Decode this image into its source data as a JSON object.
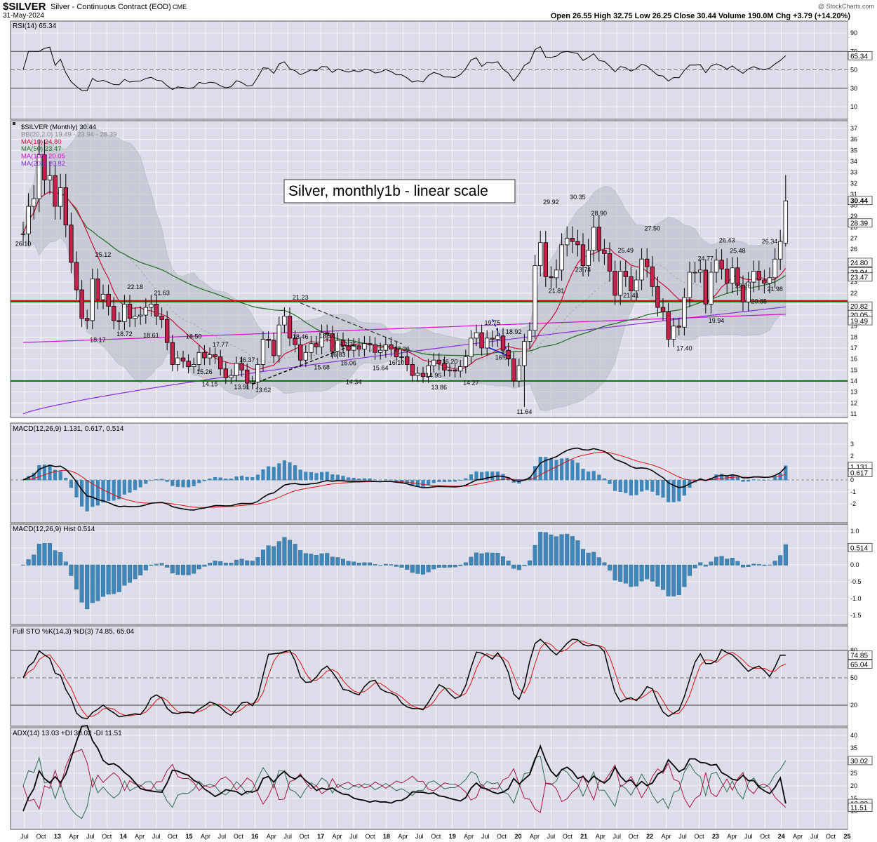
{
  "header": {
    "symbol": "$SILVER",
    "desc": "Silver - Continuous Contract (EOD)",
    "exchange": "CME",
    "date": "31-May-2024",
    "watermark": "@ StockCharts.com",
    "ohlc": "Open 26.55  High 32.75  Low 26.25  Close 30.44  Volume 190.0M  Chg +3.79 (+14.20%)"
  },
  "colors": {
    "panel_bg": "#ddddea",
    "up": "#ffffff",
    "down": "#c8204a",
    "hline_red": "#e00000",
    "hline_green": "#007a00",
    "rsi_line": "#000000",
    "ma10": "#c8103a",
    "ma50": "#1e6b1e",
    "ma100": "#d010d0",
    "ma200": "#8a2be2",
    "bb_fill": "#b8bcc4",
    "macd_line": "#000000",
    "macd_signal": "#e01010",
    "macd_hist": "#3f87b8",
    "plus_di": "#2e6b4e",
    "minus_di": "#b01040"
  },
  "x_labels": [
    "Jul",
    "Oct",
    "13",
    "Apr",
    "Jul",
    "Oct",
    "14",
    "Apr",
    "Jul",
    "Oct",
    "15",
    "Apr",
    "Jul",
    "Oct",
    "16",
    "Apr",
    "Jul",
    "Oct",
    "17",
    "Apr",
    "Jul",
    "Oct",
    "18",
    "Apr",
    "Jul",
    "Oct",
    "19",
    "Apr",
    "Jul",
    "Oct",
    "20",
    "Apr",
    "Jul",
    "Oct",
    "21",
    "Apr",
    "Jul",
    "Oct",
    "22",
    "Apr",
    "Jul",
    "Oct",
    "23",
    "Apr",
    "Jul",
    "Oct",
    "24",
    "Apr",
    "Jul",
    "Oct",
    "25"
  ],
  "rsi": {
    "title": "RSI(14) 65.34",
    "ticks": [
      "90",
      "70",
      "50",
      "30",
      "10"
    ],
    "badge": "65.34",
    "last": 65.34
  },
  "price": {
    "legend": [
      {
        "text": "$SILVER (Monthly) 30.44",
        "color": "#000000"
      },
      {
        "text": "BB(20,2.0) 19.49 - 23.94 - 28.39",
        "color": "#888888"
      },
      {
        "text": "MA(10) 24.80",
        "color": "#c8103a"
      },
      {
        "text": "MA(50) 23.47",
        "color": "#1e6b1e"
      },
      {
        "text": "MA(100) 20.05",
        "color": "#d010d0"
      },
      {
        "text": "MA(200) 20.82",
        "color": "#8a2be2"
      }
    ],
    "annotation": "Silver, monthly1b - linear scale",
    "ticks": [
      "37",
      "36",
      "35",
      "34",
      "33",
      "32",
      "31",
      "30",
      "29",
      "28",
      "27",
      "26",
      "25",
      "24",
      "23",
      "22",
      "21",
      "20",
      "19",
      "18",
      "17",
      "16",
      "15",
      "14",
      "13",
      "12",
      "11"
    ],
    "badges": [
      {
        "v": 30.44,
        "text": "30.44",
        "fill": "#ffffff",
        "bold": true
      },
      {
        "v": 28.39,
        "text": "28.39",
        "fill": "#ffffff",
        "bold": false
      },
      {
        "v": 24.8,
        "text": "24.80",
        "fill": "#ffffff",
        "bold": false
      },
      {
        "v": 23.94,
        "text": "23.94",
        "fill": "#ffffff",
        "bold": false
      },
      {
        "v": 23.47,
        "text": "23.47",
        "fill": "#ffffff",
        "bold": false
      },
      {
        "v": 20.82,
        "text": "20.82",
        "fill": "#ffffff",
        "bold": false
      },
      {
        "v": 20.05,
        "text": "20.05",
        "fill": "#ffffff",
        "bold": false
      },
      {
        "v": 19.49,
        "text": "19.49",
        "fill": "#ffffff",
        "bold": false
      }
    ],
    "hline_red": 21.3,
    "hline_green_low": 14.0,
    "hline_green_high": 21.3,
    "price_labels": [
      {
        "m": 0,
        "v": 26.1,
        "t": "26.10"
      },
      {
        "m": 14,
        "v": 18.17,
        "t": "18.17"
      },
      {
        "m": 15,
        "v": 25.12,
        "t": "25.12"
      },
      {
        "m": 19,
        "v": 18.72,
        "t": "18.72"
      },
      {
        "m": 21,
        "v": 22.18,
        "t": "22.18"
      },
      {
        "m": 24,
        "v": 18.61,
        "t": "18.61"
      },
      {
        "m": 26,
        "v": 21.63,
        "t": "21.63"
      },
      {
        "m": 32,
        "v": 18.5,
        "t": "18.50"
      },
      {
        "m": 34,
        "v": 15.26,
        "t": "15.26"
      },
      {
        "m": 35,
        "v": 14.15,
        "t": "14.15"
      },
      {
        "m": 37,
        "v": 17.77,
        "t": "17.77"
      },
      {
        "m": 41,
        "v": 13.91,
        "t": "13.91"
      },
      {
        "m": 42,
        "v": 16.37,
        "t": "16.37"
      },
      {
        "m": 45,
        "v": 13.62,
        "t": "13.62"
      },
      {
        "m": 52,
        "v": 21.23,
        "t": "21.23"
      },
      {
        "m": 52,
        "v": 18.46,
        "t": "18.46"
      },
      {
        "m": 56,
        "v": 15.68,
        "t": "15.68"
      },
      {
        "m": 57,
        "v": 18.54,
        "t": "18.54"
      },
      {
        "m": 59,
        "v": 16.83,
        "t": "16.83"
      },
      {
        "m": 61,
        "v": 17.75,
        "t": "17.75"
      },
      {
        "m": 61,
        "v": 16.06,
        "t": "16.06"
      },
      {
        "m": 62,
        "v": 14.34,
        "t": "14.34"
      },
      {
        "m": 67,
        "v": 15.64,
        "t": "15.64"
      },
      {
        "m": 70,
        "v": 16.1,
        "t": "16.10"
      },
      {
        "m": 71,
        "v": 17.36,
        "t": "17.36"
      },
      {
        "m": 77,
        "v": 14.95,
        "t": "14.95"
      },
      {
        "m": 78,
        "v": 13.86,
        "t": "13.86"
      },
      {
        "m": 80,
        "v": 16.2,
        "t": "16.20"
      },
      {
        "m": 84,
        "v": 14.27,
        "t": "14.27"
      },
      {
        "m": 88,
        "v": 19.75,
        "t": "19.75"
      },
      {
        "m": 90,
        "v": 16.57,
        "t": "16.57"
      },
      {
        "m": 92,
        "v": 18.92,
        "t": "18.92"
      },
      {
        "m": 94,
        "v": 11.64,
        "t": "11.64"
      },
      {
        "m": 99,
        "v": 29.92,
        "t": "29.92"
      },
      {
        "m": 100,
        "v": 21.81,
        "t": "21.81"
      },
      {
        "m": 104,
        "v": 30.35,
        "t": "30.35"
      },
      {
        "m": 105,
        "v": 23.74,
        "t": "23.74"
      },
      {
        "m": 108,
        "v": 28.9,
        "t": "28.90"
      },
      {
        "m": 113,
        "v": 25.49,
        "t": "25.49"
      },
      {
        "m": 114,
        "v": 21.41,
        "t": "21.41"
      },
      {
        "m": 118,
        "v": 27.5,
        "t": "27.50"
      },
      {
        "m": 124,
        "v": 17.4,
        "t": "17.40"
      },
      {
        "m": 128,
        "v": 24.77,
        "t": "24.77"
      },
      {
        "m": 130,
        "v": 19.94,
        "t": "19.94"
      },
      {
        "m": 132,
        "v": 26.43,
        "t": "26.43"
      },
      {
        "m": 134,
        "v": 25.48,
        "t": "25.48"
      },
      {
        "m": 135,
        "v": 22.26,
        "t": "22.26"
      },
      {
        "m": 138,
        "v": 20.85,
        "t": "20.85"
      },
      {
        "m": 140,
        "v": 26.34,
        "t": "26.34"
      },
      {
        "m": 141,
        "v": 21.98,
        "t": "21.98"
      }
    ]
  },
  "macd": {
    "title": "MACD(12,26,9) 1.131, 0.617, 0.514",
    "ticks": [
      "3",
      "2",
      "1",
      "0",
      "-1",
      "-2"
    ],
    "badges": [
      {
        "v": 1.131,
        "text": "1.131"
      },
      {
        "v": 0.617,
        "text": "0.617"
      }
    ]
  },
  "hist": {
    "title": "MACD(12,26,9) Hist 0.514",
    "ticks": [
      "1.0",
      "0.5",
      "0.0",
      "-0.5",
      "-1.0",
      "-1.5"
    ],
    "badge": "0.514"
  },
  "sto": {
    "title": "Full STO %K(14,3) %D(3) 74.85, 65.04",
    "ticks": [
      "80",
      "50",
      "20"
    ],
    "badges": [
      {
        "v": 74.85,
        "text": "74.85"
      },
      {
        "v": 65.04,
        "text": "65.04"
      }
    ]
  },
  "adx": {
    "title": "ADX(14) 13.03 +DI 30.02 -DI 11.51",
    "ticks": [
      "40",
      "35",
      "30",
      "25",
      "20",
      "15",
      "10"
    ],
    "badges": [
      {
        "v": 30.02,
        "text": "30.02"
      },
      {
        "v": 13.03,
        "text": "13.03"
      },
      {
        "v": 11.51,
        "text": "11.51"
      }
    ]
  },
  "chart_data": {
    "type": "line",
    "title": "Silver - Continuous Contract (EOD)",
    "interval": "monthly",
    "x_start": "2012-06",
    "x_end": "2024-05",
    "close": [
      27.4,
      29.9,
      30.6,
      34.6,
      32.3,
      32.7,
      29.9,
      31.6,
      28.2,
      24.8,
      22.3,
      19.7,
      19.5,
      23.3,
      21.4,
      21.9,
      20.8,
      19.5,
      19.4,
      21.0,
      19.7,
      19.9,
      20.0,
      20.7,
      21.0,
      19.9,
      19.6,
      17.5,
      15.5,
      16.1,
      15.8,
      15.3,
      15.5,
      16.6,
      16.1,
      16.4,
      16.2,
      15.1,
      14.3,
      14.5,
      15.6,
      15.0,
      13.8,
      13.9,
      15.5,
      17.8,
      17.7,
      16.3,
      19.1,
      19.9,
      17.9,
      17.3,
      15.9,
      16.6,
      17.4,
      17.1,
      18.4,
      18.3,
      16.7,
      17.7,
      17.2,
      16.8,
      17.2,
      16.9,
      17.4,
      17.3,
      16.6,
      16.8,
      17.3,
      16.9,
      16.2,
      16.2,
      15.5,
      14.5,
      14.7,
      14.4,
      15.4,
      15.9,
      15.6,
      15.0,
      15.0,
      14.9,
      15.3,
      16.2,
      17.9,
      18.4,
      17.0,
      17.9,
      17.8,
      18.1,
      16.8,
      16.0,
      14.0,
      15.4,
      17.6,
      18.6,
      24.5,
      26.6,
      23.5,
      23.4,
      24.1,
      26.4,
      27.0,
      26.7,
      26.4,
      24.5,
      25.9,
      28.0,
      25.9,
      25.6,
      24.0,
      21.8,
      24.0,
      23.5,
      22.2,
      23.2,
      25.1,
      24.4,
      22.6,
      20.7,
      20.3,
      17.8,
      19.0,
      18.9,
      21.6,
      23.9,
      23.9,
      24.1,
      21.0,
      23.9,
      25.0,
      24.2,
      22.9,
      24.3,
      22.7,
      21.2,
      23.0,
      24.0,
      23.2,
      22.9,
      23.4,
      25.1,
      26.7,
      30.4
    ],
    "ma10_last": 24.8,
    "ma50_last": 23.47,
    "ma100_last": 20.05,
    "ma200_last": 20.82,
    "bb_last": [
      19.49,
      23.94,
      28.39
    ],
    "rsi_last": 65.34,
    "macd_last": [
      1.131,
      0.617,
      0.514
    ],
    "sto_last": [
      74.85,
      65.04
    ],
    "adx_last": [
      13.03,
      30.02,
      11.51
    ],
    "ylim_price": [
      10.5,
      37.5
    ]
  }
}
